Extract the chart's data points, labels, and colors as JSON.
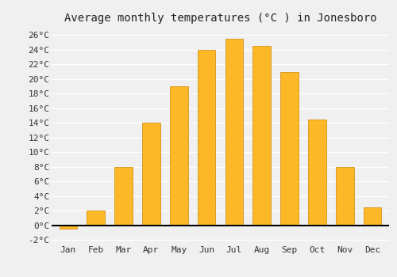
{
  "title": "Average monthly temperatures (°C ) in Jonesboro",
  "months": [
    "Jan",
    "Feb",
    "Mar",
    "Apr",
    "May",
    "Jun",
    "Jul",
    "Aug",
    "Sep",
    "Oct",
    "Nov",
    "Dec"
  ],
  "values": [
    -0.5,
    2,
    8,
    14,
    19,
    24,
    25.5,
    24.5,
    21,
    14.5,
    8,
    2.5
  ],
  "bar_color": "#FDB827",
  "bar_edge_color": "#CC8800",
  "ylim": [
    -2.5,
    27
  ],
  "yticks": [
    -2,
    0,
    2,
    4,
    6,
    8,
    10,
    12,
    14,
    16,
    18,
    20,
    22,
    24,
    26
  ],
  "ytick_labels": [
    "-2°C",
    "0°C",
    "2°C",
    "4°C",
    "6°C",
    "8°C",
    "10°C",
    "12°C",
    "14°C",
    "16°C",
    "18°C",
    "20°C",
    "22°C",
    "24°C",
    "26°C"
  ],
  "background_color": "#f0f0f0",
  "grid_color": "#ffffff",
  "zero_line_color": "#000000",
  "title_fontsize": 10,
  "tick_fontsize": 8,
  "bar_width": 0.65
}
